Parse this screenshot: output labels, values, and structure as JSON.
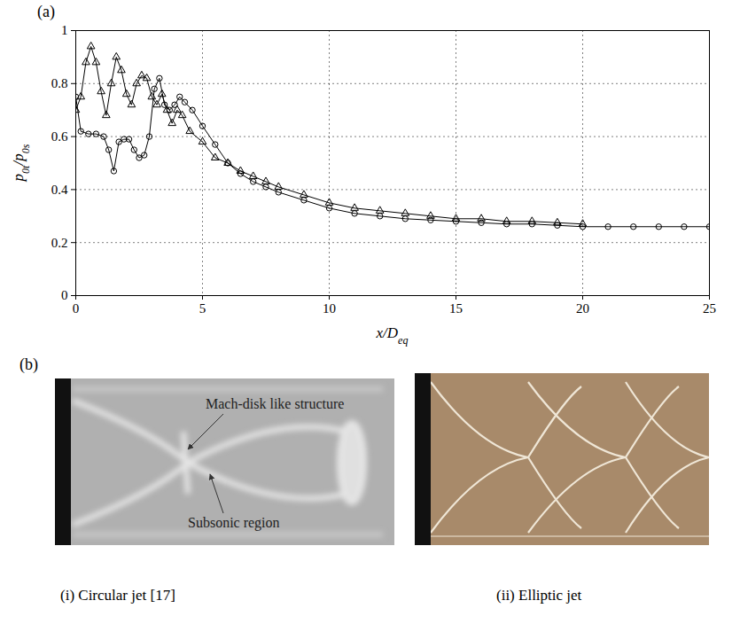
{
  "chart_data": {
    "type": "line",
    "panel_label": "(a)",
    "xlabel": [
      {
        "t": "x/D"
      },
      {
        "t": "eq",
        "sub": true
      }
    ],
    "ylabel": [
      {
        "t": "p"
      },
      {
        "t": "0t",
        "sub": true
      },
      {
        "t": "/p"
      },
      {
        "t": "0s",
        "sub": true
      }
    ],
    "xlim": [
      0,
      25
    ],
    "ylim": [
      0,
      1
    ],
    "xticks": [
      0,
      5,
      10,
      15,
      20,
      25
    ],
    "yticks": [
      0,
      0.2,
      0.4,
      0.6,
      0.8,
      1
    ],
    "grid": true,
    "series": [
      {
        "color": "#000000",
        "marker": "triangle",
        "line_style": "solid",
        "x": [
          0,
          0.2,
          0.4,
          0.6,
          0.8,
          1.0,
          1.2,
          1.4,
          1.6,
          1.8,
          2.0,
          2.2,
          2.4,
          2.6,
          2.8,
          3.0,
          3.2,
          3.4,
          3.6,
          3.8,
          4.0,
          4.2,
          4.5,
          5.0,
          5.5,
          6,
          6.5,
          7,
          7.5,
          8,
          9,
          10,
          11,
          12,
          13,
          14,
          15,
          16,
          17,
          18,
          19,
          20
        ],
        "values": [
          0.7,
          0.75,
          0.88,
          0.94,
          0.88,
          0.77,
          0.68,
          0.8,
          0.9,
          0.85,
          0.76,
          0.72,
          0.8,
          0.83,
          0.82,
          0.75,
          0.72,
          0.76,
          0.7,
          0.65,
          0.7,
          0.68,
          0.62,
          0.58,
          0.52,
          0.5,
          0.47,
          0.45,
          0.43,
          0.41,
          0.38,
          0.35,
          0.33,
          0.32,
          0.31,
          0.3,
          0.29,
          0.29,
          0.28,
          0.28,
          0.275,
          0.27
        ]
      },
      {
        "color": "#000000",
        "marker": "circle",
        "line_style": "solid",
        "x": [
          0,
          0.2,
          0.5,
          0.8,
          1.1,
          1.3,
          1.5,
          1.7,
          1.9,
          2.1,
          2.3,
          2.5,
          2.7,
          2.9,
          3.1,
          3.3,
          3.5,
          3.7,
          3.9,
          4.1,
          4.3,
          4.6,
          5.0,
          5.5,
          6,
          6.5,
          7,
          7.5,
          8,
          9,
          10,
          11,
          12,
          13,
          14,
          15,
          16,
          17,
          18,
          19,
          20,
          21,
          22,
          23,
          24,
          25
        ],
        "values": [
          0.75,
          0.62,
          0.61,
          0.61,
          0.6,
          0.55,
          0.47,
          0.58,
          0.59,
          0.59,
          0.55,
          0.52,
          0.53,
          0.6,
          0.78,
          0.82,
          0.72,
          0.7,
          0.72,
          0.75,
          0.73,
          0.7,
          0.64,
          0.57,
          0.5,
          0.46,
          0.43,
          0.41,
          0.39,
          0.36,
          0.33,
          0.31,
          0.3,
          0.29,
          0.285,
          0.28,
          0.275,
          0.27,
          0.27,
          0.265,
          0.26,
          0.26,
          0.26,
          0.26,
          0.26,
          0.26
        ]
      }
    ]
  },
  "panel_b": {
    "panel_label": "(b)",
    "images": [
      {
        "caption": "(i) Circular jet [17]",
        "annotations": [
          "Mach-disk like structure",
          "Subsonic region"
        ]
      },
      {
        "caption": "(ii) Elliptic jet"
      }
    ]
  }
}
